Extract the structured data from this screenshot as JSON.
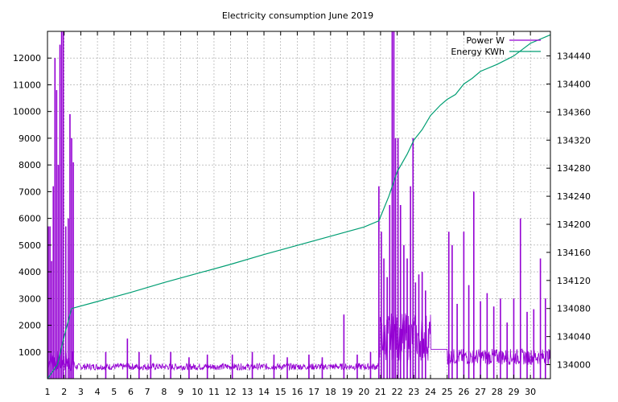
{
  "chart_data": {
    "type": "line",
    "title": "Electricity consumption June 2019",
    "xlabel": "",
    "ylabel": "",
    "y2label": "",
    "grid": true,
    "legend_position": "top-right",
    "x_ticks": [
      1,
      2,
      3,
      4,
      5,
      6,
      7,
      8,
      9,
      10,
      11,
      12,
      13,
      14,
      15,
      16,
      17,
      18,
      19,
      20,
      21,
      22,
      23,
      24,
      25,
      26,
      27,
      28,
      29,
      30
    ],
    "x_range": [
      1,
      31.2
    ],
    "y_ticks": [
      1000,
      2000,
      3000,
      4000,
      5000,
      6000,
      7000,
      8000,
      9000,
      10000,
      11000,
      12000
    ],
    "y_range": [
      0,
      13000
    ],
    "y2_ticks": [
      134000,
      134040,
      134080,
      134120,
      134160,
      134200,
      134240,
      134280,
      134320,
      134360,
      134400,
      134440
    ],
    "y2_range": [
      133980,
      134475
    ],
    "series": [
      {
        "name": "Power W",
        "axis": "left",
        "color": "#9400d3",
        "baseline_level": 400,
        "spikes": [
          {
            "x": 1.05,
            "y": 5700
          },
          {
            "x": 1.15,
            "y": 5700
          },
          {
            "x": 1.25,
            "y": 4400
          },
          {
            "x": 1.35,
            "y": 7200
          },
          {
            "x": 1.45,
            "y": 12000
          },
          {
            "x": 1.55,
            "y": 10800
          },
          {
            "x": 1.65,
            "y": 8000
          },
          {
            "x": 1.75,
            "y": 12500
          },
          {
            "x": 1.85,
            "y": 13000
          },
          {
            "x": 1.95,
            "y": 13000
          },
          {
            "x": 2.1,
            "y": 5700
          },
          {
            "x": 2.25,
            "y": 6000
          },
          {
            "x": 2.35,
            "y": 9900
          },
          {
            "x": 2.45,
            "y": 9000
          },
          {
            "x": 2.55,
            "y": 8100
          },
          {
            "x": 4.5,
            "y": 1000
          },
          {
            "x": 5.8,
            "y": 1500
          },
          {
            "x": 6.5,
            "y": 1000
          },
          {
            "x": 7.2,
            "y": 900
          },
          {
            "x": 8.4,
            "y": 1000
          },
          {
            "x": 9.5,
            "y": 800
          },
          {
            "x": 10.6,
            "y": 900
          },
          {
            "x": 12.1,
            "y": 900
          },
          {
            "x": 13.3,
            "y": 1000
          },
          {
            "x": 14.6,
            "y": 900
          },
          {
            "x": 15.4,
            "y": 800
          },
          {
            "x": 16.7,
            "y": 900
          },
          {
            "x": 17.5,
            "y": 800
          },
          {
            "x": 18.8,
            "y": 2400
          },
          {
            "x": 19.6,
            "y": 900
          },
          {
            "x": 20.4,
            "y": 1000
          },
          {
            "x": 20.9,
            "y": 7200
          },
          {
            "x": 21.05,
            "y": 5500
          },
          {
            "x": 21.2,
            "y": 4500
          },
          {
            "x": 21.4,
            "y": 3800
          },
          {
            "x": 21.55,
            "y": 6500
          },
          {
            "x": 21.7,
            "y": 13000
          },
          {
            "x": 21.8,
            "y": 13000
          },
          {
            "x": 21.9,
            "y": 9000
          },
          {
            "x": 22.05,
            "y": 9000
          },
          {
            "x": 22.2,
            "y": 6500
          },
          {
            "x": 22.4,
            "y": 5000
          },
          {
            "x": 22.6,
            "y": 4500
          },
          {
            "x": 22.8,
            "y": 7200
          },
          {
            "x": 22.95,
            "y": 9000
          },
          {
            "x": 23.1,
            "y": 3600
          },
          {
            "x": 23.3,
            "y": 3900
          },
          {
            "x": 23.5,
            "y": 4000
          },
          {
            "x": 23.7,
            "y": 3300
          },
          {
            "x": 25.1,
            "y": 5500
          },
          {
            "x": 25.3,
            "y": 5000
          },
          {
            "x": 25.6,
            "y": 2800
          },
          {
            "x": 26.0,
            "y": 5500
          },
          {
            "x": 26.3,
            "y": 3500
          },
          {
            "x": 26.6,
            "y": 7000
          },
          {
            "x": 27.0,
            "y": 2900
          },
          {
            "x": 27.4,
            "y": 3200
          },
          {
            "x": 27.8,
            "y": 2700
          },
          {
            "x": 28.2,
            "y": 3000
          },
          {
            "x": 28.6,
            "y": 2100
          },
          {
            "x": 29.0,
            "y": 3000
          },
          {
            "x": 29.4,
            "y": 6000
          },
          {
            "x": 29.8,
            "y": 2500
          },
          {
            "x": 30.2,
            "y": 2600
          },
          {
            "x": 30.6,
            "y": 4500
          },
          {
            "x": 30.9,
            "y": 3000
          }
        ]
      },
      {
        "name": "Energy KWh",
        "axis": "right",
        "color": "#009e73",
        "points": [
          [
            1.0,
            133980
          ],
          [
            1.6,
            134000
          ],
          [
            2.0,
            134040
          ],
          [
            2.45,
            134080
          ],
          [
            4.0,
            134090
          ],
          [
            6.0,
            134103
          ],
          [
            8.0,
            134117
          ],
          [
            10.0,
            134130
          ],
          [
            12.0,
            134143
          ],
          [
            14.0,
            134157
          ],
          [
            16.0,
            134170
          ],
          [
            18.0,
            134183
          ],
          [
            20.0,
            134196
          ],
          [
            20.9,
            134205
          ],
          [
            21.5,
            134240
          ],
          [
            22.0,
            134275
          ],
          [
            22.6,
            134300
          ],
          [
            23.0,
            134320
          ],
          [
            23.5,
            134335
          ],
          [
            24.0,
            134355
          ],
          [
            24.6,
            134370
          ],
          [
            25.0,
            134378
          ],
          [
            25.5,
            134385
          ],
          [
            26.0,
            134400
          ],
          [
            26.5,
            134408
          ],
          [
            27.0,
            134418
          ],
          [
            28.0,
            134428
          ],
          [
            29.0,
            134440
          ],
          [
            30.0,
            134458
          ],
          [
            31.2,
            134470
          ]
        ]
      }
    ]
  }
}
